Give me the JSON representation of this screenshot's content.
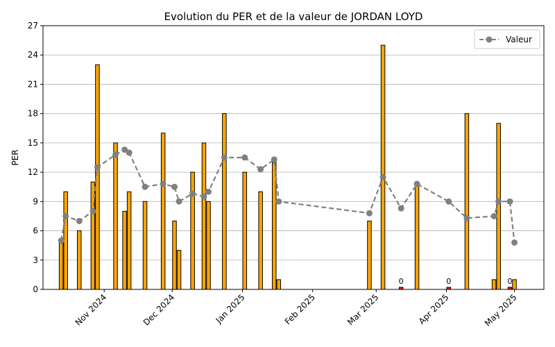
{
  "chart_data": {
    "type": "bar",
    "title": "Evolution du PER et de la valeur de JORDAN LOYD",
    "ylabel": "PER",
    "xlabel": "",
    "ylim": [
      0,
      27
    ],
    "yticks": [
      0,
      3,
      6,
      9,
      12,
      15,
      18,
      21,
      24,
      27
    ],
    "xlim": [
      "2024-10-05",
      "2025-05-14"
    ],
    "xticks": [
      {
        "date": "2024-11-01",
        "label": "Nov 2024"
      },
      {
        "date": "2024-12-01",
        "label": "Dec 2024"
      },
      {
        "date": "2025-01-01",
        "label": "Jan 2025"
      },
      {
        "date": "2025-02-01",
        "label": "Feb 2025"
      },
      {
        "date": "2025-03-01",
        "label": "Mar 2025"
      },
      {
        "date": "2025-04-01",
        "label": "Apr 2025"
      },
      {
        "date": "2025-05-01",
        "label": "May 2025"
      }
    ],
    "grid": "y",
    "legend": {
      "position": "top-right",
      "entries": [
        "Valeur"
      ]
    },
    "colors": {
      "bar": "#FFA500",
      "bar_zero": "#FF0000",
      "bar_edge": "#000000",
      "line": "#808080"
    },
    "bars": [
      {
        "date": "2024-10-13",
        "value": 5
      },
      {
        "date": "2024-10-15",
        "value": 10
      },
      {
        "date": "2024-10-21",
        "value": 6
      },
      {
        "date": "2024-10-27",
        "value": 11
      },
      {
        "date": "2024-10-29",
        "value": 23
      },
      {
        "date": "2024-11-06",
        "value": 15
      },
      {
        "date": "2024-11-10",
        "value": 8
      },
      {
        "date": "2024-11-12",
        "value": 10
      },
      {
        "date": "2024-11-19",
        "value": 9
      },
      {
        "date": "2024-11-27",
        "value": 16
      },
      {
        "date": "2024-12-02",
        "value": 7
      },
      {
        "date": "2024-12-04",
        "value": 4
      },
      {
        "date": "2024-12-10",
        "value": 12
      },
      {
        "date": "2024-12-15",
        "value": 15
      },
      {
        "date": "2024-12-17",
        "value": 9
      },
      {
        "date": "2024-12-24",
        "value": 18
      },
      {
        "date": "2025-01-02",
        "value": 12
      },
      {
        "date": "2025-01-09",
        "value": 10
      },
      {
        "date": "2025-01-15",
        "value": 13
      },
      {
        "date": "2025-01-17",
        "value": 1
      },
      {
        "date": "2025-02-26",
        "value": 7
      },
      {
        "date": "2025-03-04",
        "value": 25
      },
      {
        "date": "2025-03-12",
        "value": 0
      },
      {
        "date": "2025-03-19",
        "value": 11
      },
      {
        "date": "2025-04-02",
        "value": 0
      },
      {
        "date": "2025-04-10",
        "value": 18
      },
      {
        "date": "2025-04-22",
        "value": 1
      },
      {
        "date": "2025-04-24",
        "value": 17
      },
      {
        "date": "2025-04-29",
        "value": 0
      },
      {
        "date": "2025-05-01",
        "value": 1
      }
    ],
    "bar_labels": [
      {
        "date": "2025-03-12",
        "text": "0"
      },
      {
        "date": "2025-04-02",
        "text": "0"
      },
      {
        "date": "2025-04-29",
        "text": "0"
      }
    ],
    "series": [
      {
        "name": "Valeur",
        "type": "line",
        "points": [
          {
            "date": "2024-10-13",
            "value": 5
          },
          {
            "date": "2024-10-15",
            "value": 7.5
          },
          {
            "date": "2024-10-21",
            "value": 7
          },
          {
            "date": "2024-10-27",
            "value": 8
          },
          {
            "date": "2024-10-29",
            "value": 12.5
          },
          {
            "date": "2024-11-06",
            "value": 13.8
          },
          {
            "date": "2024-11-10",
            "value": 14.3
          },
          {
            "date": "2024-11-12",
            "value": 14
          },
          {
            "date": "2024-11-19",
            "value": 10.5
          },
          {
            "date": "2024-11-27",
            "value": 10.8
          },
          {
            "date": "2024-12-02",
            "value": 10.5
          },
          {
            "date": "2024-12-04",
            "value": 9
          },
          {
            "date": "2024-12-10",
            "value": 9.8
          },
          {
            "date": "2024-12-15",
            "value": 9.5
          },
          {
            "date": "2024-12-17",
            "value": 10
          },
          {
            "date": "2024-12-24",
            "value": 13.5
          },
          {
            "date": "2025-01-02",
            "value": 13.5
          },
          {
            "date": "2025-01-09",
            "value": 12.3
          },
          {
            "date": "2025-01-15",
            "value": 13.3
          },
          {
            "date": "2025-01-17",
            "value": 9
          },
          {
            "date": "2025-02-26",
            "value": 7.8
          },
          {
            "date": "2025-03-04",
            "value": 11.5
          },
          {
            "date": "2025-03-12",
            "value": 8.3
          },
          {
            "date": "2025-03-19",
            "value": 10.8
          },
          {
            "date": "2025-04-02",
            "value": 9
          },
          {
            "date": "2025-04-10",
            "value": 7.3
          },
          {
            "date": "2025-04-22",
            "value": 7.5
          },
          {
            "date": "2025-04-24",
            "value": 9
          },
          {
            "date": "2025-04-29",
            "value": 9
          },
          {
            "date": "2025-05-01",
            "value": 4.8
          }
        ]
      }
    ]
  }
}
